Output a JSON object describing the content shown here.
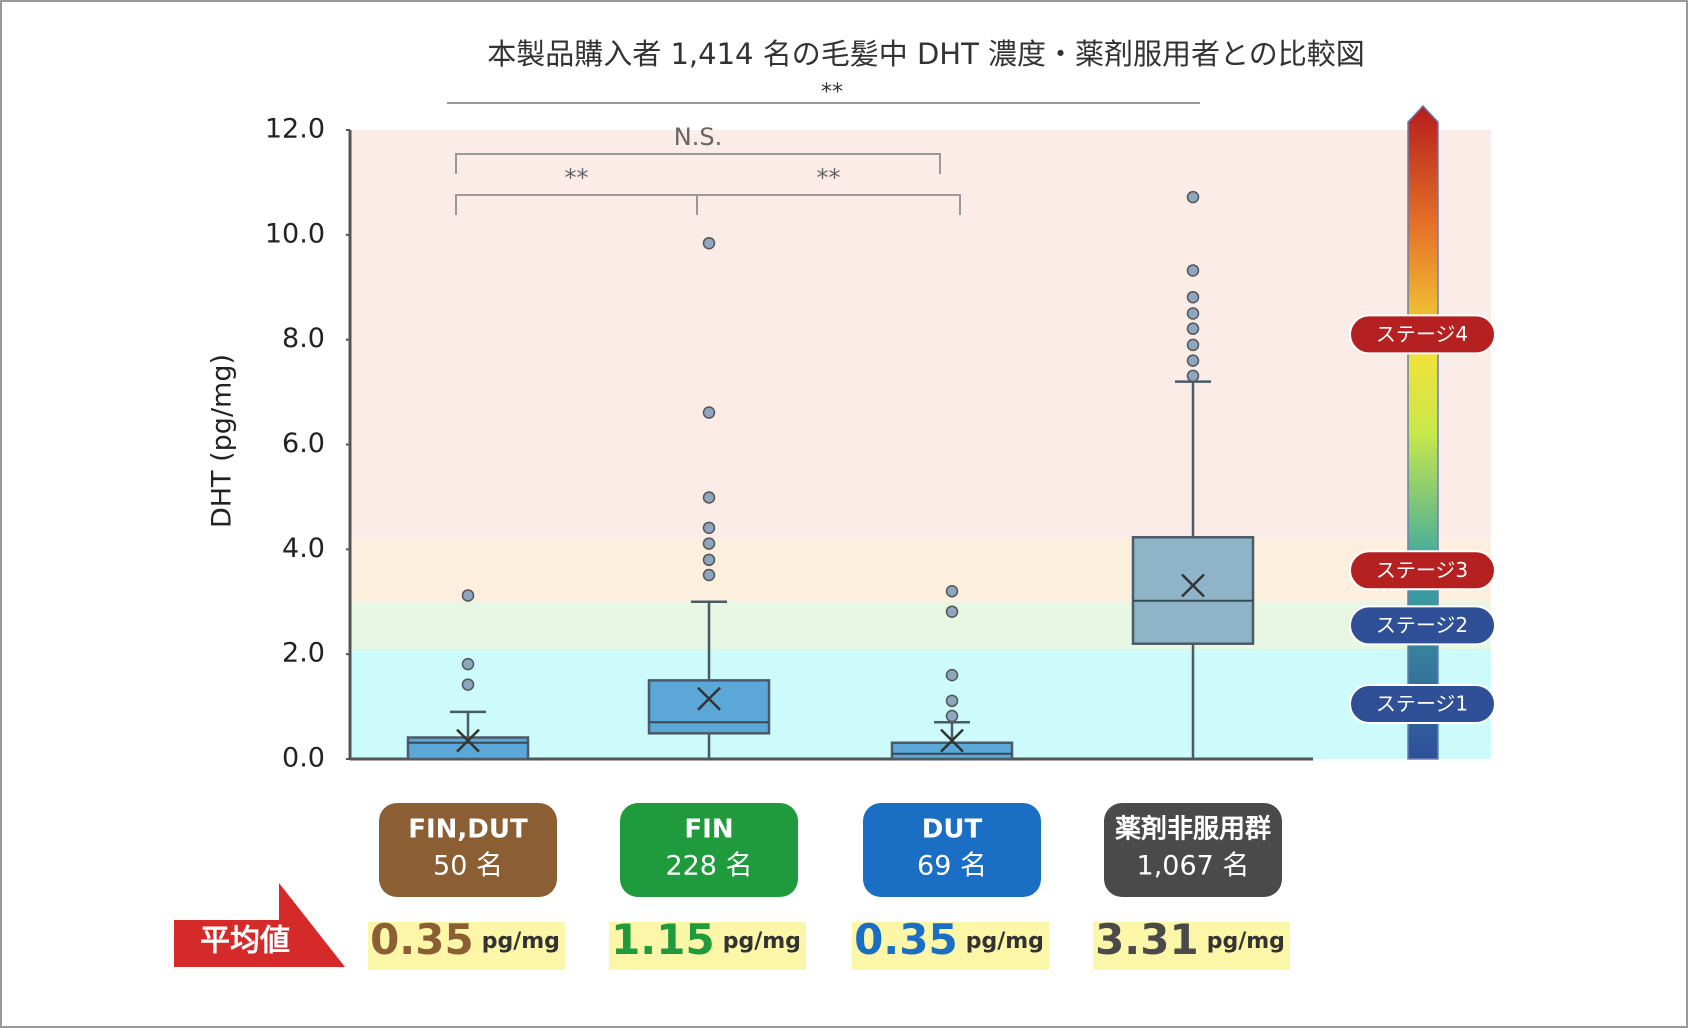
{
  "chart_data": {
    "type": "box",
    "title": "本製品購入者 1,414 名の毛髪中 DHT 濃度・薬剤服用者との比較図",
    "y_label": "DHT (pg/mg)",
    "ylim": [
      0,
      12
    ],
    "yticks": [
      {
        "value": 0,
        "label": "0.0"
      },
      {
        "value": 2,
        "label": "2.0"
      },
      {
        "value": 4,
        "label": "4.0"
      },
      {
        "value": 6,
        "label": "6.0"
      },
      {
        "value": 8,
        "label": "8.0"
      },
      {
        "value": 10,
        "label": "10.0"
      },
      {
        "value": 12,
        "label": "12.0"
      }
    ],
    "bands": [
      {
        "from": 0,
        "to": 2.1,
        "color": "#cdfafa",
        "label": "ステージ1",
        "label_color": "#2f4f96"
      },
      {
        "from": 2.1,
        "to": 3.0,
        "color": "#e7f7e3",
        "label": "ステージ2",
        "label_color": "#2f4f96"
      },
      {
        "from": 3.0,
        "to": 4.2,
        "color": "#fdefde",
        "label": "ステージ3",
        "label_color": "#b52020"
      },
      {
        "from": 4.2,
        "to": 12,
        "color": "#fcece7",
        "label": "ステージ4",
        "label_color": "#b52020"
      }
    ],
    "mean_label": "平均値",
    "mean_unit": "pg/mg",
    "groups": [
      {
        "name": "FIN,DUT",
        "n_label": "50 名",
        "color": "#8b5e34",
        "box_color": "#5ba7d8",
        "min": 0,
        "q1": 0,
        "median": 0.31,
        "q3": 0.41,
        "max": 0.9,
        "mean": 0.35,
        "outliers": [
          3.12,
          1.81,
          1.42
        ]
      },
      {
        "name": "FIN",
        "n_label": "228 名",
        "color": "#1f9a3c",
        "box_color": "#5ba7d8",
        "min": 0,
        "q1": 0.49,
        "median": 0.7,
        "q3": 1.5,
        "max": 3.0,
        "mean": 1.15,
        "outliers": [
          9.84,
          6.61,
          4.99,
          4.41,
          4.11,
          3.8,
          3.51
        ]
      },
      {
        "name": "DUT",
        "n_label": "69 名",
        "color": "#1a6fc4",
        "box_color": "#5ba7d8",
        "min": 0,
        "q1": 0,
        "median": 0.1,
        "q3": 0.31,
        "max": 0.7,
        "mean": 0.35,
        "outliers": [
          3.2,
          2.81,
          1.6,
          1.11,
          0.82
        ]
      },
      {
        "name": "薬剤非服用群",
        "n_label": "1,067 名",
        "color": "#4a4a4a",
        "box_color": "#8fb4c8",
        "min": 0,
        "q1": 2.2,
        "median": 3.02,
        "q3": 4.23,
        "max": 7.2,
        "mean": 3.31,
        "outliers": [
          10.72,
          9.32,
          8.81,
          8.5,
          8.21,
          7.9,
          7.6,
          7.31
        ]
      }
    ],
    "comparisons": [
      {
        "from": 0,
        "to": 1,
        "label": "**"
      },
      {
        "from": 1,
        "to": 2,
        "label": "**"
      },
      {
        "from": 0,
        "to": 2,
        "label": "N.S."
      },
      {
        "from": 0,
        "to": 3,
        "label": "**"
      }
    ]
  }
}
